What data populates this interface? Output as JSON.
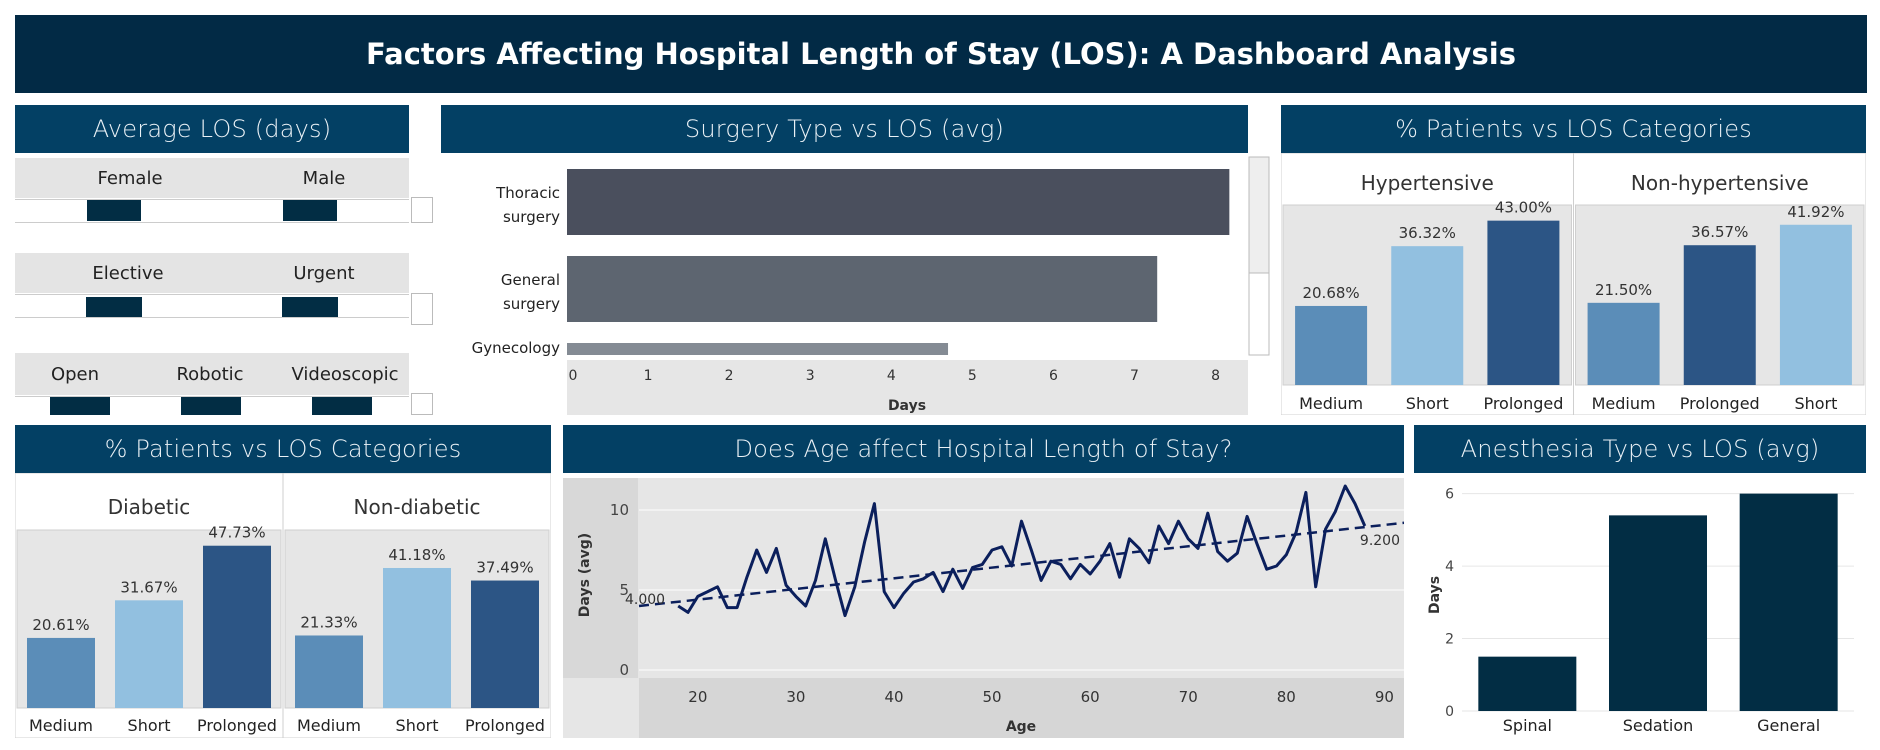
{
  "dashboard": {
    "title": "Factors Affecting Hospital Length of Stay (LOS): A Dashboard Analysis"
  },
  "avg_los": {
    "title": "Average LOS (days)",
    "groups": [
      {
        "labels": [
          "Female",
          "Male"
        ]
      },
      {
        "labels": [
          "Elective",
          "Urgent"
        ]
      },
      {
        "labels": [
          "Open",
          "Robotic",
          "Videoscopic"
        ]
      }
    ]
  },
  "colors": {
    "banner": "#022a45",
    "panel_header": "#034064",
    "bar_dark": "#022d44",
    "medium_blue": "#5b8db8",
    "light_blue": "#92c0e0",
    "prolonged_blue": "#2c5585",
    "age_line": "#0b1f5c"
  },
  "chart_data": [
    {
      "id": "surgery",
      "type": "bar",
      "orientation": "horizontal",
      "title": "Surgery Type vs LOS (avg)",
      "categories": [
        "Thoracic surgery",
        "General surgery",
        "Gynecology"
      ],
      "values": [
        8.17,
        7.28,
        4.7
      ],
      "xlabel": "Days",
      "xlim": [
        0,
        8.4
      ],
      "xticks": [
        "0",
        "1",
        "2",
        "3",
        "4",
        "5",
        "6",
        "7",
        "8"
      ],
      "colors": [
        "#4a4f5d",
        "#5d6570",
        "#848b94"
      ]
    },
    {
      "id": "hyper",
      "type": "bar",
      "title": "% Patients vs LOS Categories",
      "panels": [
        {
          "name": "Hypertensive",
          "categories": [
            "Medium",
            "Short",
            "Prolonged"
          ],
          "values": [
            20.68,
            36.32,
            43.0
          ],
          "labels": [
            "20.68%",
            "36.32%",
            "43.00%"
          ]
        },
        {
          "name": "Non-hypertensive",
          "categories": [
            "Medium",
            "Prolonged",
            "Short"
          ],
          "values": [
            21.5,
            36.57,
            41.92
          ],
          "labels": [
            "21.50%",
            "36.57%",
            "41.92%"
          ]
        }
      ],
      "ylim": [
        0,
        45
      ]
    },
    {
      "id": "diab",
      "type": "bar",
      "title": "% Patients vs LOS Categories",
      "panels": [
        {
          "name": "Diabetic",
          "categories": [
            "Medium",
            "Short",
            "Prolonged"
          ],
          "values": [
            20.61,
            31.67,
            47.73
          ],
          "labels": [
            "20.61%",
            "31.67%",
            "47.73%"
          ]
        },
        {
          "name": "Non-diabetic",
          "categories": [
            "Medium",
            "Short",
            "Prolonged"
          ],
          "values": [
            21.33,
            41.18,
            37.49
          ],
          "labels": [
            "21.33%",
            "41.18%",
            "37.49%"
          ]
        }
      ],
      "ylim": [
        0,
        50
      ]
    },
    {
      "id": "age",
      "type": "line",
      "title": "Does Age affect Hospital Length of Stay?",
      "xlabel": "Age",
      "ylabel": "Days (avg)",
      "xlim": [
        14,
        92
      ],
      "ylim": [
        -0.5,
        12
      ],
      "xticks": [
        20,
        30,
        40,
        50,
        60,
        70,
        80,
        90
      ],
      "yticks": [
        0,
        5,
        10
      ],
      "x": [
        18,
        19,
        20,
        21,
        22,
        23,
        24,
        25,
        26,
        27,
        28,
        29,
        30,
        31,
        32,
        33,
        34,
        35,
        36,
        37,
        38,
        39,
        40,
        41,
        42,
        43,
        44,
        45,
        46,
        47,
        48,
        49,
        50,
        51,
        52,
        53,
        54,
        55,
        56,
        57,
        58,
        59,
        60,
        61,
        62,
        63,
        64,
        65,
        66,
        67,
        68,
        69,
        70,
        71,
        72,
        73,
        74,
        75,
        76,
        77,
        78,
        79,
        80,
        81,
        82,
        83,
        84,
        85,
        86,
        87,
        88
      ],
      "y": [
        4.0,
        3.6,
        4.6,
        4.9,
        5.2,
        3.9,
        3.9,
        5.8,
        7.5,
        6.1,
        7.6,
        5.3,
        4.6,
        4.0,
        5.6,
        8.2,
        5.7,
        3.4,
        5.2,
        8.0,
        10.4,
        4.9,
        3.9,
        4.8,
        5.5,
        5.7,
        6.1,
        4.9,
        6.3,
        5.1,
        6.4,
        6.6,
        7.5,
        7.7,
        6.5,
        9.3,
        7.5,
        5.6,
        6.8,
        6.6,
        5.7,
        6.6,
        6.0,
        6.8,
        7.9,
        5.8,
        8.2,
        7.6,
        6.7,
        9.0,
        7.9,
        9.3,
        8.2,
        7.6,
        9.8,
        7.4,
        6.8,
        7.3,
        9.6,
        7.9,
        6.3,
        6.5,
        7.2,
        8.6,
        11.1,
        5.2,
        8.8,
        9.9,
        11.5,
        10.4,
        9.0
      ],
      "trend": {
        "start_label": "4.000",
        "end_label": "9.200",
        "start": 4.0,
        "end": 9.2
      }
    },
    {
      "id": "anesthesia",
      "type": "bar",
      "title": "Anesthesia Type vs LOS (avg)",
      "categories": [
        "Spinal",
        "Sedation",
        "General"
      ],
      "values": [
        1.5,
        5.4,
        6.0
      ],
      "ylabel": "Days",
      "ylim": [
        0,
        6.1
      ],
      "yticks": [
        0,
        2,
        4,
        6
      ]
    }
  ]
}
